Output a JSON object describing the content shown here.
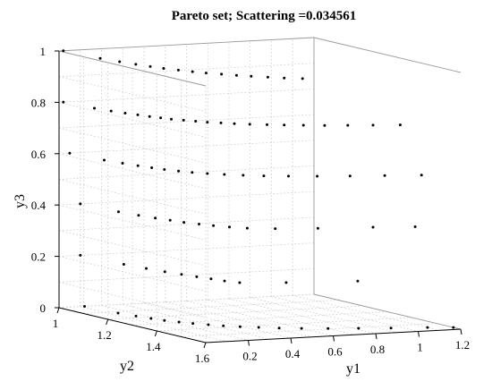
{
  "chart_data": {
    "type": "scatter",
    "title": "Pareto set; Scattering =0.034561",
    "xlabel": "y1",
    "ylabel": "y2",
    "zlabel": "y3",
    "xlim": [
      0,
      1.2
    ],
    "ylim": [
      1,
      1.6
    ],
    "zlim": [
      0,
      1
    ],
    "xticks": [
      "0.2",
      "0.4",
      "0.6",
      "0.8",
      "1",
      "1.2"
    ],
    "yticks": [
      "1",
      "1.2",
      "1.4",
      "1.6"
    ],
    "zticks": [
      "0",
      "0.2",
      "0.4",
      "0.6",
      "0.8",
      "1"
    ],
    "grid": true,
    "marker_color": "#000000",
    "layers": [
      {
        "z": 0.0,
        "x": [
          0.12,
          0.14,
          0.16,
          0.18,
          0.2,
          0.23,
          0.26,
          0.3,
          0.34,
          0.39,
          0.45,
          0.52,
          0.6,
          0.7,
          0.82,
          0.95,
          1.1,
          1.2
        ]
      },
      {
        "z": 0.2,
        "x": [
          0.1,
          0.12,
          0.14,
          0.16,
          0.18,
          0.2,
          0.22,
          0.24,
          0.27,
          0.45,
          0.75
        ]
      },
      {
        "z": 0.4,
        "x": [
          0.1,
          0.12,
          0.14,
          0.16,
          0.18,
          0.2,
          0.23,
          0.26,
          0.3,
          0.35,
          0.45,
          0.62,
          0.85,
          1.02
        ]
      },
      {
        "z": 0.6,
        "x": [
          0.05,
          0.07,
          0.09,
          0.11,
          0.13,
          0.15,
          0.18,
          0.21,
          0.25,
          0.3,
          0.36,
          0.43,
          0.52,
          0.63,
          0.76,
          0.9,
          1.05
        ]
      },
      {
        "z": 0.8,
        "x": [
          0.02,
          0.04,
          0.06,
          0.08,
          0.1,
          0.12,
          0.14,
          0.16,
          0.19,
          0.22,
          0.25,
          0.29,
          0.33,
          0.38,
          0.44,
          0.5,
          0.57,
          0.65,
          0.74,
          0.84,
          0.95
        ]
      },
      {
        "z": 1.0,
        "x": [
          0.02,
          0.04,
          0.06,
          0.08,
          0.1,
          0.12,
          0.15,
          0.18,
          0.21,
          0.25,
          0.29,
          0.33,
          0.38,
          0.43,
          0.49
        ]
      }
    ]
  }
}
